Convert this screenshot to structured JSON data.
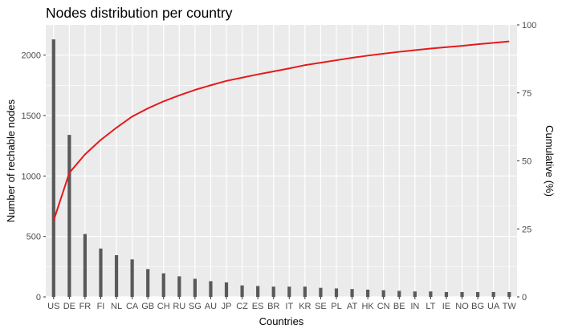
{
  "chart_data": {
    "type": "bar",
    "title": "Nodes distribution per country",
    "xlabel": "Countries",
    "ylabel": "Number of rechable nodes",
    "y2label": "Cumulative (%)",
    "categories": [
      "US",
      "DE",
      "FR",
      "FI",
      "NL",
      "CA",
      "GB",
      "CH",
      "RU",
      "SG",
      "AU",
      "JP",
      "CZ",
      "ES",
      "BR",
      "IT",
      "KR",
      "SE",
      "PL",
      "AT",
      "HK",
      "CN",
      "BE",
      "IN",
      "LT",
      "IE",
      "NO",
      "BG",
      "UA",
      "TW"
    ],
    "series": [
      {
        "type": "bar",
        "axis": "left",
        "color": "#595959",
        "values": [
          2130,
          1340,
          520,
          400,
          345,
          310,
          230,
          195,
          170,
          150,
          130,
          120,
          95,
          90,
          85,
          85,
          85,
          75,
          70,
          65,
          60,
          55,
          50,
          45,
          45,
          40,
          40,
          40,
          40,
          40
        ]
      },
      {
        "type": "line",
        "axis": "right",
        "color": "#e41a1c",
        "values": [
          28,
          45.6,
          52.4,
          57.7,
          62.2,
          66.3,
          69.3,
          71.9,
          74.1,
          76.1,
          77.8,
          79.4,
          80.6,
          81.8,
          82.9,
          84.0,
          85.2,
          86.1,
          87.0,
          87.9,
          88.7,
          89.4,
          90.1,
          90.7,
          91.3,
          91.8,
          92.3,
          92.9,
          93.4,
          93.9
        ]
      }
    ],
    "ylim": [
      0,
      2250
    ],
    "y2lim": [
      0,
      100
    ],
    "yticks": [
      0,
      500,
      1000,
      1500,
      2000
    ],
    "y2ticks": [
      0,
      25,
      50,
      75,
      100
    ],
    "grid": true,
    "background": "#ebebeb",
    "gridColor": "#ffffff"
  }
}
